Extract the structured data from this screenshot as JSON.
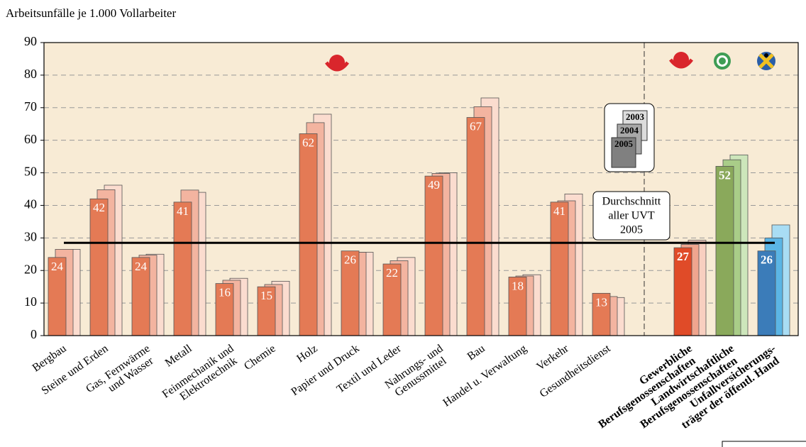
{
  "chart_data": {
    "type": "bar",
    "title": "Arbeitsunfälle je 1.000 Vollarbeiter",
    "categories": [
      "Bergbau",
      "Steine und Erden",
      "Gas, Fernwärme\nund Wasser",
      "Metall",
      "Feinmechanik und\nElektrotechnik",
      "Chemie",
      "Holz",
      "Papier und Druck",
      "Textil und Leder",
      "Nahrungs- und\nGenussmittel",
      "Bau",
      "Handel u. Verwaltung",
      "Verkehr",
      "Gesundheitsdienst",
      "Gewerbliche\nBerufsgenossenschaften",
      "Landwirtschaftliche\nBerufsgenossenschaften",
      "Unfallversicherungs-\nträger der öffentl. Hand"
    ],
    "series": [
      {
        "name": "2005",
        "legend_color": "#808080",
        "colors": [
          "#e47a55",
          "#e47a55",
          "#e47a55",
          "#e47a55",
          "#e47a55",
          "#e47a55",
          "#e47a55",
          "#e47a55",
          "#e47a55",
          "#e47a55",
          "#e47a55",
          "#e47a55",
          "#e47a55",
          "#e47a55",
          "#e04b28",
          "#8aa95b",
          "#3b7cb9"
        ],
        "values": [
          24,
          42,
          24,
          41,
          16,
          15,
          62,
          26,
          22,
          49,
          67,
          18,
          41,
          13,
          27,
          52,
          26
        ]
      },
      {
        "name": "2004",
        "legend_color": "#a8a8a8",
        "colors": [
          "#f3b4a0",
          "#f3b4a0",
          "#f3b4a0",
          "#f3b4a0",
          "#f3b4a0",
          "#f3b4a0",
          "#f3b4a0",
          "#f3b4a0",
          "#f3b4a0",
          "#f3b4a0",
          "#f3b4a0",
          "#f3b4a0",
          "#f3b4a0",
          "#f3b4a0",
          "#f0a58e",
          "#a9cd88",
          "#5bb5e5"
        ],
        "values": [
          26.5,
          44.8,
          24.7,
          44.7,
          17,
          15.7,
          65.4,
          25.6,
          23,
          49.8,
          70.3,
          18.3,
          41.4,
          12,
          28,
          54,
          30
        ]
      },
      {
        "name": "2003",
        "legend_color": "#dcdcdc",
        "colors": [
          "#fbdccf",
          "#fbdccf",
          "#fbdccf",
          "#fbdccf",
          "#fbdccf",
          "#fbdccf",
          "#fbdccf",
          "#fbdccf",
          "#fbdccf",
          "#fbdccf",
          "#fbdccf",
          "#fbdccf",
          "#fbdccf",
          "#fbdccf",
          "#f8cfc0",
          "#cde6bb",
          "#a9ddf4"
        ],
        "values": [
          26.5,
          46.2,
          25,
          44,
          17.6,
          16.7,
          68,
          25.6,
          24,
          50,
          73,
          18.7,
          43.5,
          11.7,
          29.3,
          55.5,
          34
        ]
      }
    ],
    "ylim": [
      0,
      90
    ],
    "yticks": [
      0,
      10,
      20,
      30,
      40,
      50,
      60,
      70,
      80,
      90
    ],
    "grid": true,
    "reference_line": {
      "value": 28.5,
      "label": [
        "Durchschnitt",
        "aller UVT",
        "2005"
      ]
    }
  }
}
